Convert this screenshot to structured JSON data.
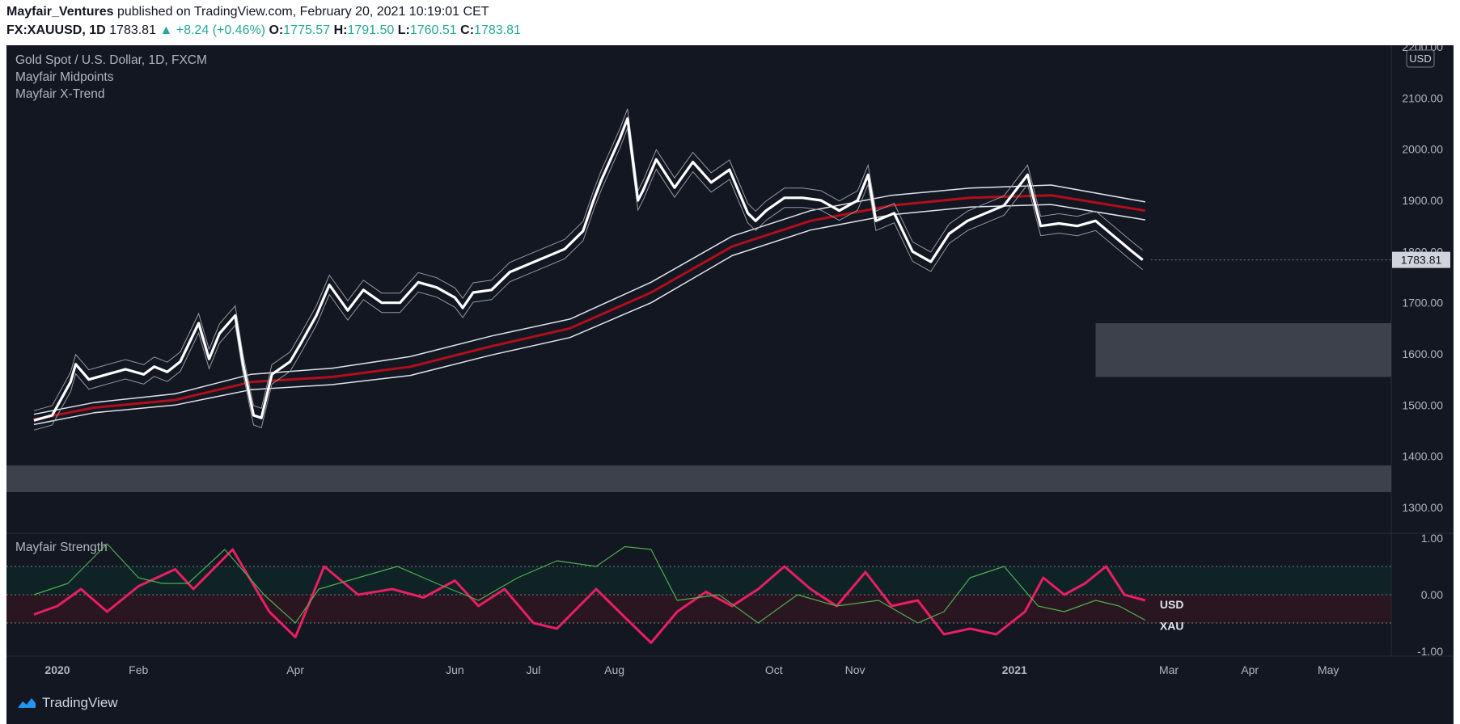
{
  "header": {
    "author": "Mayfair_Ventures",
    "published_text": "published on TradingView.com, February 20, 2021 10:19:01 CET",
    "symbol": "FX:XAUUSD, 1D",
    "last": "1783.81",
    "change": "+8.24 (+0.46%)",
    "o_label": "O:",
    "o_value": "1775.57",
    "h_label": "H:",
    "h_value": "1791.50",
    "l_label": "L:",
    "l_value": "1760.51",
    "c_label": "C:",
    "c_value": "1783.81"
  },
  "pane_labels": {
    "instrument": "Gold Spot / U.S. Dollar, 1D, FXCM",
    "indicator1": "Mayfair Midpoints",
    "indicator2": "Mayfair X-Trend",
    "lower": "Mayfair Strength"
  },
  "footer": {
    "brand": "TradingView"
  },
  "colors": {
    "background": "#131722",
    "price": "#ffffff",
    "midpoint": "#8b0000",
    "usd_strength": "#e91e63",
    "xau_strength": "#4caf50",
    "zone": "#434651"
  },
  "chart_data": [
    {
      "type": "line",
      "title": "Gold Spot / U.S. Dollar, 1D, FXCM",
      "ylabel": "USD",
      "ylim": [
        1290,
        2210
      ],
      "y_ticks": [
        "2200.00",
        "2100.00",
        "2000.00",
        "1900.00",
        "1800.00",
        "1700.00",
        "1600.00",
        "1500.00",
        "1400.00",
        "1300.00"
      ],
      "last_value_label": "1783.81",
      "x_ticks": [
        "2020",
        "Feb",
        "Apr",
        "Jun",
        "Jul",
        "Aug",
        "Oct",
        "Nov",
        "2021",
        "Mar",
        "Apr",
        "May"
      ],
      "x_tick_dates": [
        "2020-01-01",
        "2020-02-01",
        "2020-04-01",
        "2020-06-01",
        "2020-07-01",
        "2020-08-01",
        "2020-10-01",
        "2020-11-01",
        "2021-01-01",
        "2021-03-01",
        "2021-04-01",
        "2021-05-01"
      ],
      "series": [
        {
          "name": "Close",
          "points": [
            [
              "2019-12-23",
              1470
            ],
            [
              "2019-12-30",
              1480
            ],
            [
              "2020-01-06",
              1545
            ],
            [
              "2020-01-08",
              1580
            ],
            [
              "2020-01-13",
              1550
            ],
            [
              "2020-01-20",
              1560
            ],
            [
              "2020-01-27",
              1570
            ],
            [
              "2020-02-03",
              1560
            ],
            [
              "2020-02-07",
              1575
            ],
            [
              "2020-02-12",
              1565
            ],
            [
              "2020-02-17",
              1585
            ],
            [
              "2020-02-24",
              1660
            ],
            [
              "2020-02-28",
              1590
            ],
            [
              "2020-03-03",
              1640
            ],
            [
              "2020-03-09",
              1675
            ],
            [
              "2020-03-12",
              1580
            ],
            [
              "2020-03-16",
              1480
            ],
            [
              "2020-03-19",
              1475
            ],
            [
              "2020-03-23",
              1560
            ],
            [
              "2020-03-30",
              1585
            ],
            [
              "2020-04-03",
              1620
            ],
            [
              "2020-04-09",
              1675
            ],
            [
              "2020-04-14",
              1735
            ],
            [
              "2020-04-21",
              1685
            ],
            [
              "2020-04-27",
              1725
            ],
            [
              "2020-05-04",
              1700
            ],
            [
              "2020-05-11",
              1700
            ],
            [
              "2020-05-18",
              1740
            ],
            [
              "2020-05-25",
              1730
            ],
            [
              "2020-06-01",
              1710
            ],
            [
              "2020-06-04",
              1690
            ],
            [
              "2020-06-08",
              1720
            ],
            [
              "2020-06-15",
              1725
            ],
            [
              "2020-06-22",
              1760
            ],
            [
              "2020-06-29",
              1775
            ],
            [
              "2020-07-06",
              1790
            ],
            [
              "2020-07-13",
              1805
            ],
            [
              "2020-07-20",
              1840
            ],
            [
              "2020-07-24",
              1900
            ],
            [
              "2020-07-27",
              1940
            ],
            [
              "2020-08-03",
              2020
            ],
            [
              "2020-08-06",
              2060
            ],
            [
              "2020-08-10",
              1900
            ],
            [
              "2020-08-12",
              1920
            ],
            [
              "2020-08-17",
              1980
            ],
            [
              "2020-08-24",
              1925
            ],
            [
              "2020-08-31",
              1975
            ],
            [
              "2020-09-07",
              1935
            ],
            [
              "2020-09-14",
              1960
            ],
            [
              "2020-09-21",
              1875
            ],
            [
              "2020-09-24",
              1860
            ],
            [
              "2020-09-28",
              1880
            ],
            [
              "2020-10-05",
              1905
            ],
            [
              "2020-10-12",
              1905
            ],
            [
              "2020-10-19",
              1900
            ],
            [
              "2020-10-26",
              1880
            ],
            [
              "2020-11-02",
              1900
            ],
            [
              "2020-11-06",
              1950
            ],
            [
              "2020-11-09",
              1860
            ],
            [
              "2020-11-16",
              1875
            ],
            [
              "2020-11-23",
              1800
            ],
            [
              "2020-11-30",
              1780
            ],
            [
              "2020-12-07",
              1835
            ],
            [
              "2020-12-14",
              1860
            ],
            [
              "2020-12-21",
              1875
            ],
            [
              "2020-12-28",
              1890
            ],
            [
              "2021-01-06",
              1950
            ],
            [
              "2021-01-11",
              1850
            ],
            [
              "2021-01-18",
              1855
            ],
            [
              "2021-01-25",
              1850
            ],
            [
              "2021-02-01",
              1860
            ],
            [
              "2021-02-08",
              1830
            ],
            [
              "2021-02-15",
              1800
            ],
            [
              "2021-02-19",
              1783.81
            ]
          ]
        },
        {
          "name": "Midpoint",
          "points": [
            [
              "2019-12-23",
              1472
            ],
            [
              "2020-01-15",
              1495
            ],
            [
              "2020-02-15",
              1510
            ],
            [
              "2020-03-15",
              1545
            ],
            [
              "2020-04-15",
              1555
            ],
            [
              "2020-05-15",
              1575
            ],
            [
              "2020-06-15",
              1615
            ],
            [
              "2020-07-15",
              1650
            ],
            [
              "2020-08-15",
              1720
            ],
            [
              "2020-09-15",
              1810
            ],
            [
              "2020-10-15",
              1860
            ],
            [
              "2020-11-15",
              1890
            ],
            [
              "2020-12-15",
              1905
            ],
            [
              "2021-01-15",
              1910
            ],
            [
              "2021-02-20",
              1880
            ]
          ]
        },
        {
          "name": "Upper band",
          "points": [
            [
              "2019-12-23",
              1482
            ],
            [
              "2020-01-15",
              1505
            ],
            [
              "2020-02-15",
              1522
            ],
            [
              "2020-03-15",
              1560
            ],
            [
              "2020-04-15",
              1572
            ],
            [
              "2020-05-15",
              1595
            ],
            [
              "2020-06-15",
              1635
            ],
            [
              "2020-07-15",
              1668
            ],
            [
              "2020-08-15",
              1740
            ],
            [
              "2020-09-15",
              1830
            ],
            [
              "2020-10-15",
              1880
            ],
            [
              "2020-11-15",
              1910
            ],
            [
              "2020-12-15",
              1924
            ],
            [
              "2021-01-15",
              1930
            ],
            [
              "2021-02-20",
              1897
            ]
          ]
        },
        {
          "name": "Lower band",
          "points": [
            [
              "2019-12-23",
              1462
            ],
            [
              "2020-01-15",
              1485
            ],
            [
              "2020-02-15",
              1500
            ],
            [
              "2020-03-15",
              1530
            ],
            [
              "2020-04-15",
              1540
            ],
            [
              "2020-05-15",
              1558
            ],
            [
              "2020-06-15",
              1598
            ],
            [
              "2020-07-15",
              1632
            ],
            [
              "2020-08-15",
              1700
            ],
            [
              "2020-09-15",
              1792
            ],
            [
              "2020-10-15",
              1842
            ],
            [
              "2020-11-15",
              1872
            ],
            [
              "2020-12-15",
              1887
            ],
            [
              "2021-01-15",
              1892
            ],
            [
              "2021-02-20",
              1862
            ]
          ]
        }
      ],
      "zones": [
        {
          "y_from": 1555,
          "y_to": 1660,
          "x_from": "2021-02-01"
        },
        {
          "y_from": 1330,
          "y_to": 1382
        }
      ]
    },
    {
      "type": "line",
      "title": "Mayfair Strength",
      "ylim": [
        -1.05,
        1.05
      ],
      "y_ticks": [
        "1.00",
        "0.00",
        "-1.00"
      ],
      "series": [
        {
          "name": "USD",
          "points": [
            [
              "2019-12-23",
              -0.35
            ],
            [
              "2020-01-01",
              -0.2
            ],
            [
              "2020-01-10",
              0.1
            ],
            [
              "2020-01-20",
              -0.3
            ],
            [
              "2020-02-01",
              0.15
            ],
            [
              "2020-02-15",
              0.45
            ],
            [
              "2020-02-22",
              0.1
            ],
            [
              "2020-03-08",
              0.8
            ],
            [
              "2020-03-22",
              -0.3
            ],
            [
              "2020-04-01",
              -0.75
            ],
            [
              "2020-04-12",
              0.5
            ],
            [
              "2020-04-25",
              0.0
            ],
            [
              "2020-05-08",
              0.1
            ],
            [
              "2020-05-20",
              -0.05
            ],
            [
              "2020-06-01",
              0.25
            ],
            [
              "2020-06-10",
              -0.2
            ],
            [
              "2020-06-20",
              0.1
            ],
            [
              "2020-07-01",
              -0.5
            ],
            [
              "2020-07-10",
              -0.6
            ],
            [
              "2020-07-25",
              0.1
            ],
            [
              "2020-08-05",
              -0.4
            ],
            [
              "2020-08-15",
              -0.85
            ],
            [
              "2020-08-25",
              -0.3
            ],
            [
              "2020-09-05",
              0.05
            ],
            [
              "2020-09-15",
              -0.2
            ],
            [
              "2020-09-25",
              0.1
            ],
            [
              "2020-10-05",
              0.5
            ],
            [
              "2020-10-15",
              0.1
            ],
            [
              "2020-10-25",
              -0.2
            ],
            [
              "2020-11-05",
              0.4
            ],
            [
              "2020-11-15",
              -0.2
            ],
            [
              "2020-11-25",
              -0.1
            ],
            [
              "2020-12-05",
              -0.7
            ],
            [
              "2020-12-15",
              -0.6
            ],
            [
              "2020-12-25",
              -0.7
            ],
            [
              "2021-01-05",
              -0.3
            ],
            [
              "2021-01-12",
              0.3
            ],
            [
              "2021-01-20",
              0.0
            ],
            [
              "2021-01-28",
              0.2
            ],
            [
              "2021-02-05",
              0.5
            ],
            [
              "2021-02-12",
              0.0
            ],
            [
              "2021-02-20",
              -0.1
            ]
          ]
        },
        {
          "name": "XAU",
          "points": [
            [
              "2019-12-23",
              0.0
            ],
            [
              "2020-01-05",
              0.2
            ],
            [
              "2020-01-20",
              0.9
            ],
            [
              "2020-02-01",
              0.3
            ],
            [
              "2020-02-10",
              0.2
            ],
            [
              "2020-02-20",
              0.2
            ],
            [
              "2020-03-05",
              0.8
            ],
            [
              "2020-03-20",
              0.0
            ],
            [
              "2020-04-01",
              -0.5
            ],
            [
              "2020-04-10",
              0.1
            ],
            [
              "2020-04-25",
              0.3
            ],
            [
              "2020-05-10",
              0.5
            ],
            [
              "2020-05-25",
              0.2
            ],
            [
              "2020-06-10",
              -0.1
            ],
            [
              "2020-06-25",
              0.3
            ],
            [
              "2020-07-10",
              0.6
            ],
            [
              "2020-07-25",
              0.5
            ],
            [
              "2020-08-05",
              0.85
            ],
            [
              "2020-08-15",
              0.8
            ],
            [
              "2020-08-25",
              -0.1
            ],
            [
              "2020-09-10",
              0.0
            ],
            [
              "2020-09-25",
              -0.5
            ],
            [
              "2020-10-10",
              0.0
            ],
            [
              "2020-10-25",
              -0.2
            ],
            [
              "2020-11-10",
              -0.1
            ],
            [
              "2020-11-25",
              -0.5
            ],
            [
              "2020-12-05",
              -0.3
            ],
            [
              "2020-12-15",
              0.3
            ],
            [
              "2020-12-28",
              0.5
            ],
            [
              "2021-01-10",
              -0.2
            ],
            [
              "2021-01-20",
              -0.3
            ],
            [
              "2021-02-01",
              -0.1
            ],
            [
              "2021-02-10",
              -0.2
            ],
            [
              "2021-02-20",
              -0.45
            ]
          ]
        }
      ],
      "levels": [
        0.5,
        0.0,
        -0.5
      ]
    }
  ]
}
